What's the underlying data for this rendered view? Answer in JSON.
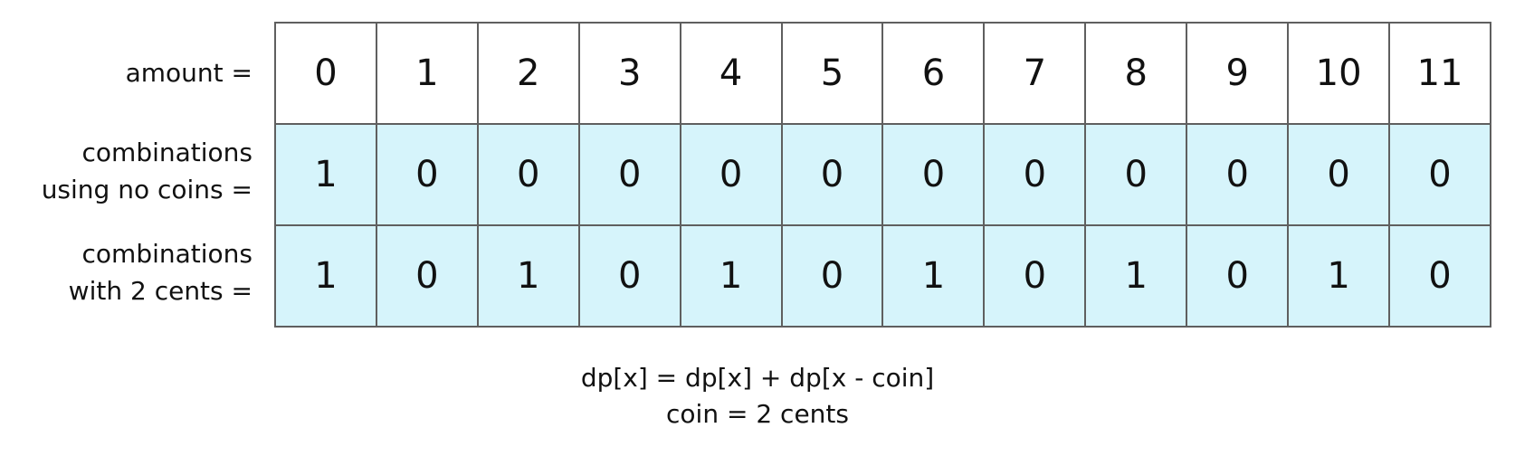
{
  "row_labels": {
    "amount": [
      "amount ="
    ],
    "no_coins": [
      "combinations",
      "using no coins ="
    ],
    "two_cents": [
      "combinations",
      "with 2 cents ="
    ]
  },
  "amounts": [
    "0",
    "1",
    "2",
    "3",
    "4",
    "5",
    "6",
    "7",
    "8",
    "9",
    "10",
    "11"
  ],
  "combinations_no_coins": [
    "1",
    "0",
    "0",
    "0",
    "0",
    "0",
    "0",
    "0",
    "0",
    "0",
    "0",
    "0"
  ],
  "combinations_with_2_cents": [
    "1",
    "0",
    "1",
    "0",
    "1",
    "0",
    "1",
    "0",
    "1",
    "0",
    "1",
    "0"
  ],
  "formula": {
    "line1": "dp[x] = dp[x] + dp[x - coin]",
    "line2": "coin = 2 cents"
  },
  "colors": {
    "cell_fill": "#d6f4fb",
    "border": "#5f5f5f"
  }
}
